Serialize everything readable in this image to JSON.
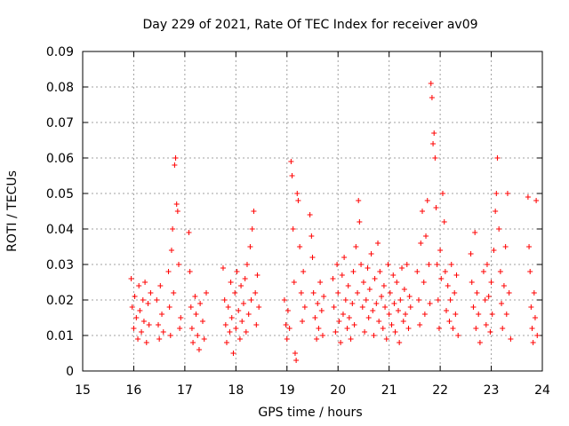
{
  "chart_data": {
    "type": "scatter",
    "title": "Day 229 of 2021, Rate Of TEC Index for receiver av09",
    "xlabel": "GPS time / hours",
    "ylabel": "ROTI / TECUs",
    "xlim": [
      15,
      24
    ],
    "ylim": [
      0,
      0.09
    ],
    "xticks": [
      "15",
      "16",
      "17",
      "18",
      "19",
      "20",
      "21",
      "22",
      "23",
      "24"
    ],
    "yticks": [
      "0",
      "0.01",
      "0.02",
      "0.03",
      "0.04",
      "0.05",
      "0.06",
      "0.07",
      "0.08",
      "0.09"
    ],
    "grid": true,
    "marker": "+",
    "color": "#ff0000",
    "series": [
      {
        "name": "ROTI",
        "points": [
          [
            15.95,
            0.026
          ],
          [
            15.97,
            0.018
          ],
          [
            16.0,
            0.012
          ],
          [
            16.02,
            0.021
          ],
          [
            16.05,
            0.015
          ],
          [
            16.08,
            0.009
          ],
          [
            16.1,
            0.024
          ],
          [
            16.12,
            0.017
          ],
          [
            16.15,
            0.011
          ],
          [
            16.18,
            0.02
          ],
          [
            16.2,
            0.014
          ],
          [
            16.22,
            0.025
          ],
          [
            16.25,
            0.008
          ],
          [
            16.28,
            0.019
          ],
          [
            16.3,
            0.013
          ],
          [
            16.33,
            0.022
          ],
          [
            16.45,
            0.02
          ],
          [
            16.48,
            0.013
          ],
          [
            16.5,
            0.009
          ],
          [
            16.52,
            0.024
          ],
          [
            16.55,
            0.016
          ],
          [
            16.58,
            0.011
          ],
          [
            16.68,
            0.028
          ],
          [
            16.7,
            0.018
          ],
          [
            16.72,
            0.01
          ],
          [
            16.74,
            0.034
          ],
          [
            16.76,
            0.04
          ],
          [
            16.78,
            0.022
          ],
          [
            16.8,
            0.058
          ],
          [
            16.82,
            0.06
          ],
          [
            16.84,
            0.047
          ],
          [
            16.86,
            0.045
          ],
          [
            16.88,
            0.03
          ],
          [
            16.9,
            0.012
          ],
          [
            16.92,
            0.015
          ],
          [
            17.08,
            0.039
          ],
          [
            17.1,
            0.028
          ],
          [
            17.12,
            0.018
          ],
          [
            17.14,
            0.012
          ],
          [
            17.16,
            0.008
          ],
          [
            17.2,
            0.021
          ],
          [
            17.22,
            0.016
          ],
          [
            17.25,
            0.01
          ],
          [
            17.28,
            0.006
          ],
          [
            17.3,
            0.019
          ],
          [
            17.35,
            0.014
          ],
          [
            17.38,
            0.009
          ],
          [
            17.42,
            0.022
          ],
          [
            17.75,
            0.029
          ],
          [
            17.78,
            0.02
          ],
          [
            17.8,
            0.013
          ],
          [
            17.82,
            0.008
          ],
          [
            17.85,
            0.018
          ],
          [
            17.88,
            0.011
          ],
          [
            17.9,
            0.025
          ],
          [
            17.92,
            0.015
          ],
          [
            17.95,
            0.005
          ],
          [
            17.98,
            0.022
          ],
          [
            18.0,
            0.012
          ],
          [
            18.02,
            0.028
          ],
          [
            18.05,
            0.017
          ],
          [
            18.08,
            0.009
          ],
          [
            18.1,
            0.024
          ],
          [
            18.12,
            0.014
          ],
          [
            18.15,
            0.019
          ],
          [
            18.18,
            0.026
          ],
          [
            18.2,
            0.011
          ],
          [
            18.22,
            0.03
          ],
          [
            18.25,
            0.016
          ],
          [
            18.28,
            0.035
          ],
          [
            18.3,
            0.02
          ],
          [
            18.32,
            0.04
          ],
          [
            18.35,
            0.045
          ],
          [
            18.38,
            0.022
          ],
          [
            18.4,
            0.013
          ],
          [
            18.42,
            0.027
          ],
          [
            18.45,
            0.018
          ],
          [
            18.95,
            0.02
          ],
          [
            18.98,
            0.013
          ],
          [
            19.0,
            0.009
          ],
          [
            19.02,
            0.017
          ],
          [
            19.05,
            0.012
          ],
          [
            19.08,
            0.059
          ],
          [
            19.1,
            0.055
          ],
          [
            19.12,
            0.04
          ],
          [
            19.14,
            0.025
          ],
          [
            19.16,
            0.005
          ],
          [
            19.18,
            0.003
          ],
          [
            19.2,
            0.05
          ],
          [
            19.22,
            0.048
          ],
          [
            19.25,
            0.035
          ],
          [
            19.28,
            0.022
          ],
          [
            19.3,
            0.014
          ],
          [
            19.32,
            0.028
          ],
          [
            19.35,
            0.018
          ],
          [
            19.45,
            0.044
          ],
          [
            19.48,
            0.038
          ],
          [
            19.5,
            0.032
          ],
          [
            19.52,
            0.022
          ],
          [
            19.55,
            0.015
          ],
          [
            19.58,
            0.009
          ],
          [
            19.6,
            0.019
          ],
          [
            19.62,
            0.012
          ],
          [
            19.65,
            0.025
          ],
          [
            19.68,
            0.017
          ],
          [
            19.7,
            0.01
          ],
          [
            19.72,
            0.021
          ],
          [
            19.9,
            0.026
          ],
          [
            19.92,
            0.018
          ],
          [
            19.95,
            0.011
          ],
          [
            19.98,
            0.03
          ],
          [
            20.0,
            0.022
          ],
          [
            20.02,
            0.014
          ],
          [
            20.05,
            0.008
          ],
          [
            20.08,
            0.027
          ],
          [
            20.1,
            0.016
          ],
          [
            20.12,
            0.032
          ],
          [
            20.15,
            0.02
          ],
          [
            20.18,
            0.012
          ],
          [
            20.2,
            0.024
          ],
          [
            20.22,
            0.015
          ],
          [
            20.25,
            0.009
          ],
          [
            20.28,
            0.019
          ],
          [
            20.3,
            0.028
          ],
          [
            20.32,
            0.013
          ],
          [
            20.35,
            0.035
          ],
          [
            20.38,
            0.022
          ],
          [
            20.4,
            0.048
          ],
          [
            20.42,
            0.042
          ],
          [
            20.45,
            0.03
          ],
          [
            20.48,
            0.018
          ],
          [
            20.5,
            0.025
          ],
          [
            20.52,
            0.011
          ],
          [
            20.55,
            0.02
          ],
          [
            20.58,
            0.029
          ],
          [
            20.6,
            0.015
          ],
          [
            20.62,
            0.023
          ],
          [
            20.65,
            0.033
          ],
          [
            20.68,
            0.017
          ],
          [
            20.7,
            0.01
          ],
          [
            20.72,
            0.026
          ],
          [
            20.75,
            0.019
          ],
          [
            20.78,
            0.036
          ],
          [
            20.8,
            0.014
          ],
          [
            20.82,
            0.028
          ],
          [
            20.85,
            0.021
          ],
          [
            20.88,
            0.012
          ],
          [
            20.9,
            0.024
          ],
          [
            20.92,
            0.018
          ],
          [
            20.95,
            0.009
          ],
          [
            20.98,
            0.03
          ],
          [
            21.0,
            0.016
          ],
          [
            21.02,
            0.022
          ],
          [
            21.05,
            0.013
          ],
          [
            21.08,
            0.027
          ],
          [
            21.1,
            0.019
          ],
          [
            21.12,
            0.011
          ],
          [
            21.15,
            0.025
          ],
          [
            21.18,
            0.017
          ],
          [
            21.2,
            0.008
          ],
          [
            21.22,
            0.02
          ],
          [
            21.25,
            0.029
          ],
          [
            21.28,
            0.014
          ],
          [
            21.3,
            0.023
          ],
          [
            21.32,
            0.016
          ],
          [
            21.35,
            0.03
          ],
          [
            21.38,
            0.012
          ],
          [
            21.4,
            0.021
          ],
          [
            21.42,
            0.018
          ],
          [
            21.55,
            0.028
          ],
          [
            21.58,
            0.02
          ],
          [
            21.6,
            0.013
          ],
          [
            21.62,
            0.036
          ],
          [
            21.65,
            0.045
          ],
          [
            21.68,
            0.025
          ],
          [
            21.7,
            0.016
          ],
          [
            21.72,
            0.038
          ],
          [
            21.75,
            0.048
          ],
          [
            21.78,
            0.03
          ],
          [
            21.8,
            0.019
          ],
          [
            21.82,
            0.081
          ],
          [
            21.84,
            0.077
          ],
          [
            21.86,
            0.064
          ],
          [
            21.88,
            0.067
          ],
          [
            21.9,
            0.06
          ],
          [
            21.92,
            0.046
          ],
          [
            21.94,
            0.03
          ],
          [
            21.96,
            0.02
          ],
          [
            21.98,
            0.012
          ],
          [
            22.0,
            0.034
          ],
          [
            22.02,
            0.026
          ],
          [
            22.05,
            0.05
          ],
          [
            22.08,
            0.042
          ],
          [
            22.1,
            0.028
          ],
          [
            22.12,
            0.017
          ],
          [
            22.15,
            0.024
          ],
          [
            22.18,
            0.014
          ],
          [
            22.2,
            0.02
          ],
          [
            22.22,
            0.03
          ],
          [
            22.25,
            0.012
          ],
          [
            22.28,
            0.022
          ],
          [
            22.3,
            0.016
          ],
          [
            22.32,
            0.027
          ],
          [
            22.35,
            0.01
          ],
          [
            22.6,
            0.033
          ],
          [
            22.62,
            0.025
          ],
          [
            22.65,
            0.018
          ],
          [
            22.68,
            0.039
          ],
          [
            22.7,
            0.012
          ],
          [
            22.72,
            0.022
          ],
          [
            22.75,
            0.016
          ],
          [
            22.78,
            0.008
          ],
          [
            22.85,
            0.028
          ],
          [
            22.88,
            0.02
          ],
          [
            22.9,
            0.013
          ],
          [
            22.92,
            0.03
          ],
          [
            22.95,
            0.021
          ],
          [
            22.98,
            0.011
          ],
          [
            23.0,
            0.025
          ],
          [
            23.02,
            0.016
          ],
          [
            23.05,
            0.034
          ],
          [
            23.08,
            0.045
          ],
          [
            23.1,
            0.05
          ],
          [
            23.12,
            0.06
          ],
          [
            23.15,
            0.04
          ],
          [
            23.18,
            0.028
          ],
          [
            23.2,
            0.019
          ],
          [
            23.22,
            0.012
          ],
          [
            23.25,
            0.024
          ],
          [
            23.28,
            0.035
          ],
          [
            23.3,
            0.016
          ],
          [
            23.32,
            0.05
          ],
          [
            23.35,
            0.022
          ],
          [
            23.38,
            0.009
          ],
          [
            23.72,
            0.049
          ],
          [
            23.74,
            0.035
          ],
          [
            23.76,
            0.028
          ],
          [
            23.78,
            0.018
          ],
          [
            23.8,
            0.012
          ],
          [
            23.82,
            0.008
          ],
          [
            23.84,
            0.022
          ],
          [
            23.86,
            0.015
          ],
          [
            23.88,
            0.048
          ],
          [
            23.9,
            0.01
          ]
        ]
      }
    ]
  }
}
